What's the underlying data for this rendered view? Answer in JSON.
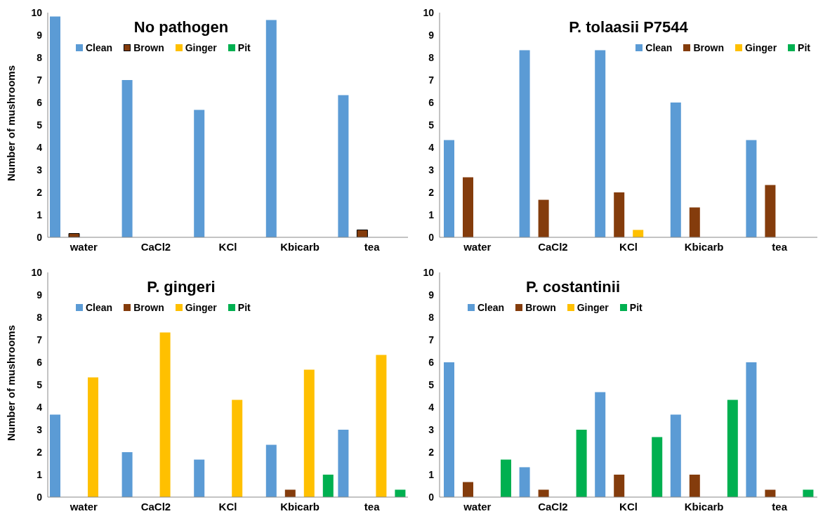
{
  "chart_data": [
    {
      "type": "bar",
      "title": "No pathogen",
      "ylabel": "Number of mushrooms",
      "categories": [
        "water",
        "CaCl2",
        "KCl",
        "Kbicarb",
        "tea"
      ],
      "ylim": [
        0,
        10
      ],
      "yticks": [
        0,
        1,
        2,
        3,
        4,
        5,
        6,
        7,
        8,
        9,
        10
      ],
      "grid": false,
      "legend": "top",
      "series": [
        {
          "name": "Clean",
          "color": "#5b9bd5",
          "values": [
            9.83,
            7.0,
            5.67,
            9.67,
            6.33
          ]
        },
        {
          "name": "Brown",
          "color": "#843c0c",
          "values": [
            0.17,
            0,
            0,
            0,
            0.33
          ]
        },
        {
          "name": "Ginger",
          "color": "#ffc000",
          "values": [
            0,
            0,
            0,
            0,
            0
          ]
        },
        {
          "name": "Pit",
          "color": "#00b050",
          "values": [
            0,
            0,
            0,
            0,
            0
          ]
        }
      ]
    },
    {
      "type": "bar",
      "title": "P. tolaasii P7544",
      "categories": [
        "water",
        "CaCl2",
        "KCl",
        "Kbicarb",
        "tea"
      ],
      "ylim": [
        0,
        10
      ],
      "yticks": [
        0,
        1,
        2,
        3,
        4,
        5,
        6,
        7,
        8,
        9,
        10
      ],
      "grid": false,
      "legend": "top right",
      "series": [
        {
          "name": "Clean",
          "color": "#5b9bd5",
          "values": [
            4.33,
            8.33,
            8.33,
            6.0,
            4.33
          ]
        },
        {
          "name": "Brown",
          "color": "#843c0c",
          "values": [
            2.67,
            1.67,
            2.0,
            1.33,
            2.33
          ]
        },
        {
          "name": "Ginger",
          "color": "#ffc000",
          "values": [
            0,
            0,
            0.33,
            0,
            0
          ]
        },
        {
          "name": "Pit",
          "color": "#00b050",
          "values": [
            0,
            0,
            0,
            0,
            0
          ]
        }
      ]
    },
    {
      "type": "bar",
      "title": "P. gingeri",
      "ylabel": "Number of mushrooms",
      "categories": [
        "water",
        "CaCl2",
        "KCl",
        "Kbicarb",
        "tea"
      ],
      "ylim": [
        0,
        10
      ],
      "yticks": [
        0,
        1,
        2,
        3,
        4,
        5,
        6,
        7,
        8,
        9,
        10
      ],
      "grid": false,
      "legend": "top",
      "series": [
        {
          "name": "Clean",
          "color": "#5b9bd5",
          "values": [
            3.67,
            2.0,
            1.67,
            2.33,
            3.0
          ]
        },
        {
          "name": "Brown",
          "color": "#843c0c",
          "values": [
            0,
            0,
            0,
            0.33,
            0
          ]
        },
        {
          "name": "Ginger",
          "color": "#ffc000",
          "values": [
            5.33,
            7.33,
            4.33,
            5.67,
            6.33
          ]
        },
        {
          "name": "Pit",
          "color": "#00b050",
          "values": [
            0,
            0,
            0,
            1.0,
            0.33
          ]
        }
      ]
    },
    {
      "type": "bar",
      "title": "P. costantinii",
      "categories": [
        "water",
        "CaCl2",
        "KCl",
        "Kbicarb",
        "tea"
      ],
      "ylim": [
        0,
        10
      ],
      "yticks": [
        0,
        1,
        2,
        3,
        4,
        5,
        6,
        7,
        8,
        9,
        10
      ],
      "grid": false,
      "legend": "top",
      "series": [
        {
          "name": "Clean",
          "color": "#5b9bd5",
          "values": [
            6.0,
            1.33,
            4.67,
            3.67,
            6.0
          ]
        },
        {
          "name": "Brown",
          "color": "#843c0c",
          "values": [
            0.67,
            0.33,
            1.0,
            1.0,
            0.33
          ]
        },
        {
          "name": "Ginger",
          "color": "#ffc000",
          "values": [
            0,
            0,
            0,
            0,
            0
          ]
        },
        {
          "name": "Pit",
          "color": "#00b050",
          "values": [
            1.67,
            3.0,
            2.67,
            4.33,
            0.33
          ]
        }
      ]
    }
  ]
}
